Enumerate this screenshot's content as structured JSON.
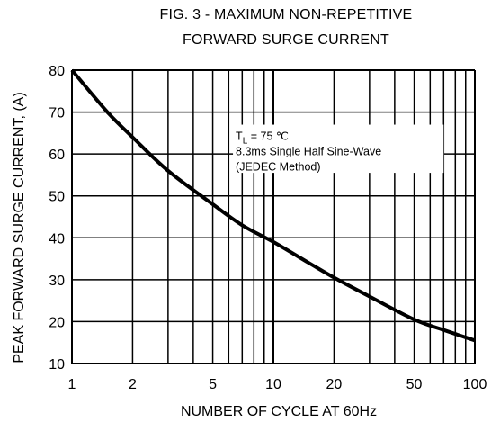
{
  "chart_data": {
    "type": "line",
    "title": "FIG. 3 - MAXIMUM NON-REPETITIVE",
    "subtitle": "FORWARD SURGE CURRENT",
    "xlabel": "NUMBER OF CYCLE AT 60Hz",
    "ylabel": "PEAK FORWARD SURGE CURRENT, (A)",
    "x_scale": "log",
    "xlim": [
      1,
      100
    ],
    "ylim": [
      10,
      80
    ],
    "x_tick_labels": [
      "1",
      "2",
      "5",
      "10",
      "20",
      "50",
      "100"
    ],
    "x_tick_values": [
      1,
      2,
      5,
      10,
      20,
      50,
      100
    ],
    "y_tick_labels": [
      "10",
      "20",
      "30",
      "40",
      "50",
      "60",
      "70",
      "80"
    ],
    "y_tick_values": [
      10,
      20,
      30,
      40,
      50,
      60,
      70,
      80
    ],
    "grid": true,
    "series": [
      {
        "x": [
          1,
          1.5,
          2,
          3,
          5,
          7,
          10,
          15,
          20,
          30,
          50,
          70,
          100
        ],
        "y": [
          80,
          70,
          64,
          56,
          48,
          43,
          39,
          34,
          30.5,
          26,
          20.5,
          18,
          15.5
        ]
      }
    ],
    "annotation": {
      "line1_main": "T",
      "line1_sub": "L",
      "line1_rest": " = 75 ℃",
      "line2": "8.3ms Single Half Sine-Wave",
      "line3": "(JEDEC Method)"
    }
  },
  "style": {
    "curve_color": "#000000",
    "grid_color": "#000000",
    "background": "#ffffff"
  }
}
